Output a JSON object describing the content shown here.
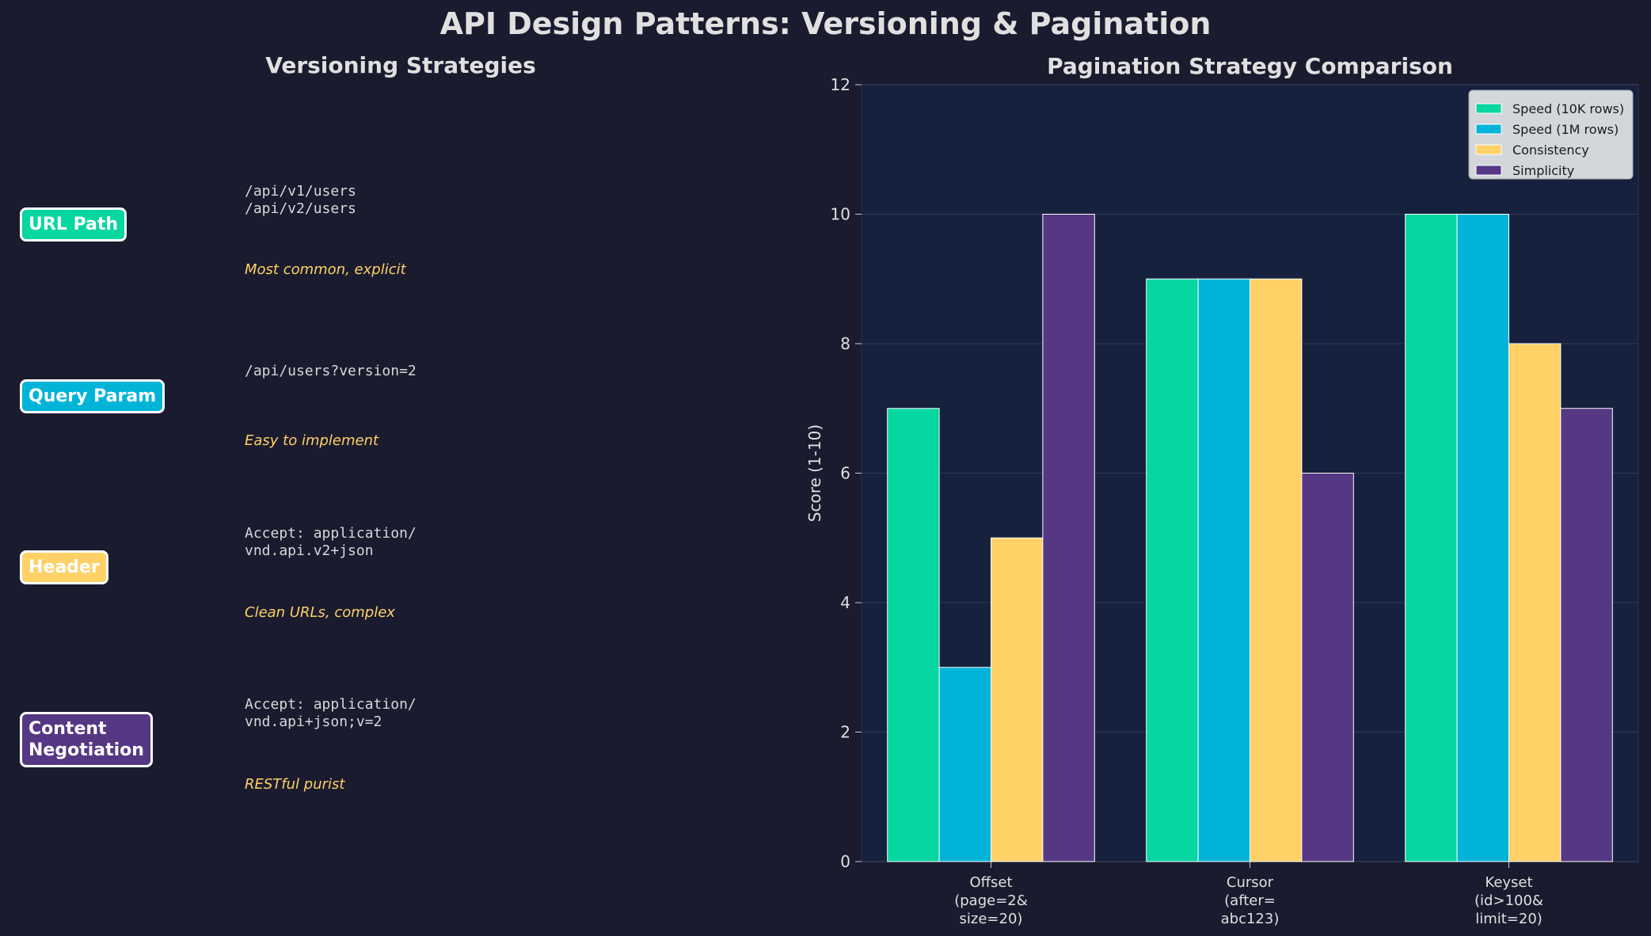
{
  "title": "API Design Patterns: Versioning & Pagination",
  "versioning": {
    "title": "Versioning Strategies",
    "items": [
      {
        "label": "URL Path",
        "color": "#06d6a0",
        "code": "/api/v1/users\n/api/v2/users",
        "desc": "Most common, explicit"
      },
      {
        "label": "Query Param",
        "color": "#00b4d8",
        "code": "/api/users?version=2",
        "desc": "Easy to implement"
      },
      {
        "label": "Header",
        "color": "#ffd166",
        "code": "Accept: application/\nvnd.api.v2+json",
        "desc": "Clean URLs, complex"
      },
      {
        "label": "Content\nNegotiation",
        "color": "#553784",
        "code": "Accept: application/\nvnd.api+json;v=2",
        "desc": "RESTful purist"
      }
    ]
  },
  "chart_data": {
    "type": "bar",
    "title": "Pagination Strategy Comparison",
    "xlabel": "",
    "ylabel": "Score (1-10)",
    "ylim": [
      0,
      12
    ],
    "yticks": [
      "0",
      "2",
      "4",
      "6",
      "8",
      "10",
      "12"
    ],
    "categories": [
      "Offset\n(page=2&\nsize=20)",
      "Cursor\n(after=\nabc123)",
      "Keyset\n(id>100&\nlimit=20)"
    ],
    "series": [
      {
        "name": "Speed (10K rows)",
        "color": "#06d6a0",
        "values": [
          7,
          9,
          10
        ]
      },
      {
        "name": "Speed (1M rows)",
        "color": "#00b4d8",
        "values": [
          3,
          9,
          10
        ]
      },
      {
        "name": "Consistency",
        "color": "#ffd166",
        "values": [
          5,
          9,
          8
        ]
      },
      {
        "name": "Simplicity",
        "color": "#553784",
        "values": [
          10,
          6,
          7
        ]
      }
    ],
    "grid": true,
    "legend": "top-right"
  }
}
